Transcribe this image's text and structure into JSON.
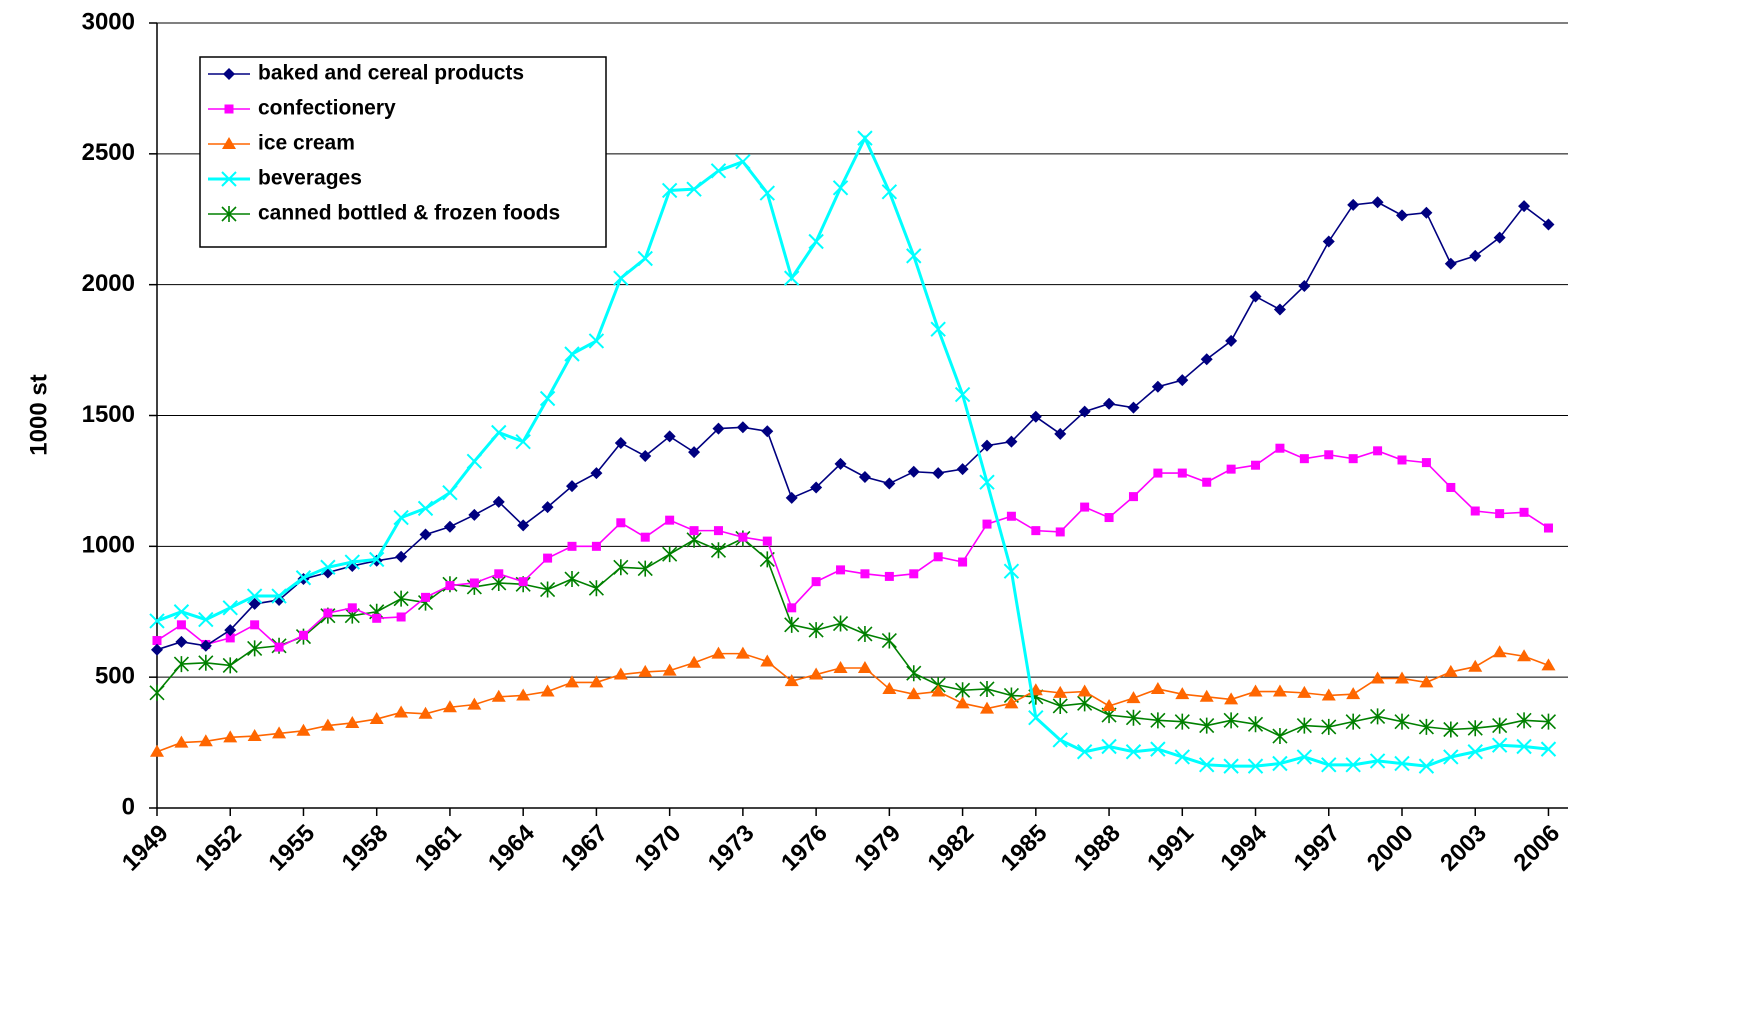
{
  "chart_data": {
    "type": "line",
    "y_label": "1000 st",
    "x": [
      1949,
      1950,
      1951,
      1952,
      1953,
      1954,
      1955,
      1956,
      1957,
      1958,
      1959,
      1960,
      1961,
      1962,
      1963,
      1964,
      1965,
      1966,
      1967,
      1968,
      1969,
      1970,
      1971,
      1972,
      1973,
      1974,
      1975,
      1976,
      1977,
      1978,
      1979,
      1980,
      1981,
      1982,
      1983,
      1984,
      1985,
      1986,
      1987,
      1988,
      1989,
      1990,
      1991,
      1992,
      1993,
      1994,
      1995,
      1996,
      1997,
      1998,
      1999,
      2000,
      2001,
      2002,
      2003,
      2004,
      2005,
      2006
    ],
    "xlim": [
      1949,
      2006.8
    ],
    "xticks": [
      1949,
      1952,
      1955,
      1958,
      1961,
      1964,
      1967,
      1970,
      1973,
      1976,
      1979,
      1982,
      1985,
      1988,
      1991,
      1994,
      1997,
      2000,
      2003,
      2006
    ],
    "ylim": [
      0,
      3000
    ],
    "yticks": [
      0,
      500,
      1000,
      1500,
      2000,
      2500,
      3000
    ],
    "grid": true,
    "legend": "upper left",
    "series": [
      {
        "name": "baked and cereal products",
        "color": "#000080",
        "marker": "diamond",
        "values": [
          605,
          635,
          620,
          680,
          780,
          795,
          875,
          900,
          925,
          945,
          960,
          1045,
          1075,
          1120,
          1170,
          1080,
          1150,
          1230,
          1280,
          1395,
          1345,
          1420,
          1360,
          1450,
          1455,
          1440,
          1185,
          1225,
          1315,
          1265,
          1240,
          1285,
          1280,
          1295,
          1385,
          1400,
          1495,
          1430,
          1515,
          1545,
          1530,
          1610,
          1635,
          1715,
          1785,
          1955,
          1905,
          1995,
          2165,
          2305,
          2315,
          2265,
          2275,
          2080,
          2110,
          2180,
          2300,
          2230
        ]
      },
      {
        "name": "confectionery",
        "color": "#ff00ff",
        "marker": "square",
        "values": [
          640,
          700,
          625,
          650,
          700,
          615,
          660,
          745,
          765,
          725,
          730,
          805,
          850,
          860,
          895,
          865,
          955,
          1000,
          1000,
          1090,
          1035,
          1100,
          1060,
          1060,
          1035,
          1020,
          765,
          865,
          910,
          895,
          885,
          895,
          960,
          940,
          1085,
          1115,
          1060,
          1055,
          1150,
          1110,
          1190,
          1280,
          1280,
          1245,
          1295,
          1310,
          1375,
          1335,
          1350,
          1335,
          1365,
          1330,
          1320,
          1225,
          1135,
          1125,
          1130,
          1070
        ]
      },
      {
        "name": "ice cream",
        "color": "#ff6600",
        "marker": "triangle",
        "values": [
          215,
          250,
          255,
          270,
          275,
          285,
          295,
          315,
          325,
          340,
          365,
          360,
          385,
          395,
          425,
          430,
          445,
          480,
          480,
          510,
          520,
          525,
          555,
          590,
          590,
          560,
          485,
          510,
          535,
          535,
          455,
          435,
          445,
          400,
          380,
          400,
          450,
          440,
          445,
          390,
          420,
          455,
          435,
          425,
          415,
          445,
          445,
          440,
          430,
          435,
          495,
          495,
          480,
          520,
          540,
          595,
          580,
          545
        ]
      },
      {
        "name": "beverages",
        "color": "#00ffff",
        "marker": "x",
        "values": [
          715,
          750,
          720,
          765,
          810,
          810,
          880,
          920,
          940,
          950,
          1110,
          1145,
          1205,
          1325,
          1435,
          1400,
          1565,
          1735,
          1785,
          2025,
          2100,
          2360,
          2365,
          2435,
          2470,
          2350,
          2025,
          2165,
          2370,
          2560,
          2355,
          2110,
          1830,
          1580,
          1245,
          905,
          345,
          260,
          215,
          235,
          215,
          225,
          195,
          165,
          160,
          160,
          170,
          195,
          165,
          165,
          180,
          170,
          160,
          195,
          215,
          240,
          235,
          225
        ]
      },
      {
        "name": "canned bottled & frozen foods",
        "color": "#008000",
        "marker": "star",
        "values": [
          440,
          550,
          555,
          545,
          610,
          620,
          655,
          735,
          735,
          750,
          800,
          785,
          855,
          845,
          860,
          855,
          835,
          875,
          840,
          920,
          915,
          970,
          1025,
          985,
          1030,
          950,
          700,
          680,
          705,
          665,
          640,
          515,
          470,
          450,
          455,
          430,
          425,
          390,
          400,
          355,
          345,
          335,
          330,
          315,
          335,
          320,
          275,
          315,
          310,
          330,
          350,
          330,
          310,
          300,
          305,
          315,
          335,
          330
        ]
      }
    ]
  }
}
